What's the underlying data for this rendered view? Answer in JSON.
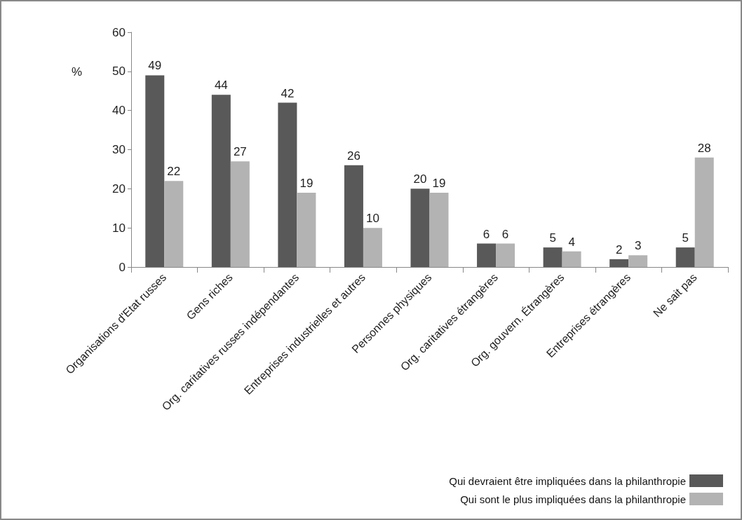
{
  "chart_data": {
    "type": "bar",
    "ylabel": "%",
    "categories": [
      "Organisations d'Etat russes",
      "Gens riches",
      "Org. caritatives russes indépendantes",
      "Entreprises industrielles et autres",
      "Personnes physiques",
      "Org. caritatives étrangères",
      "Org. gouvern. Étrangères",
      "Entreprises étrangères",
      "Ne sait pas"
    ],
    "series": [
      {
        "name": "Qui devraient être impliquées dans la philanthropie",
        "color": "#595959",
        "values": [
          49,
          44,
          42,
          26,
          20,
          6,
          5,
          2,
          5
        ]
      },
      {
        "name": "Qui sont le plus impliquées dans la philanthropie",
        "color": "#b3b3b3",
        "values": [
          22,
          27,
          19,
          10,
          19,
          6,
          4,
          3,
          28
        ]
      }
    ],
    "ylim": [
      0,
      60
    ],
    "yticks": [
      0,
      10,
      20,
      30,
      40,
      50,
      60
    ],
    "grid": false,
    "legend": "bottom right",
    "data_labels": true
  }
}
